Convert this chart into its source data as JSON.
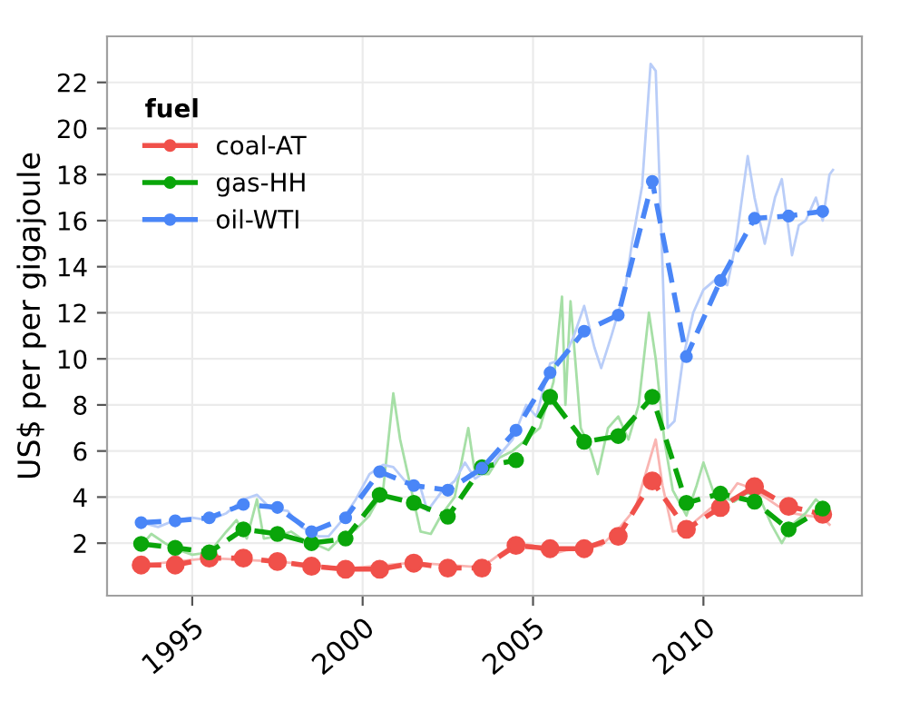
{
  "chart_data": {
    "type": "line",
    "ylabel": "US$ per per gigajoule",
    "legend_title": "fuel",
    "legend": "top left",
    "grid": true,
    "xlim": [
      1992.5,
      2014.65
    ],
    "ylim": [
      -0.28,
      24
    ],
    "xticks": [
      1995,
      2000,
      2005,
      2010
    ],
    "yticks": [
      2,
      4,
      6,
      8,
      10,
      12,
      14,
      16,
      18,
      20,
      22
    ],
    "series": [
      {
        "color": "#f9b5b2",
        "line_style": "solid",
        "marker": "none",
        "x": [
          1993.5,
          1995.5,
          1997.5,
          1999.5,
          2001.5,
          2003.5,
          2004.0,
          2004.5,
          2005.0,
          2005.5,
          2006.0,
          2006.5,
          2007.0,
          2007.5,
          2008.0,
          2008.4,
          2008.6,
          2008.8,
          2009.1,
          2009.5,
          2009.8,
          2010.2,
          2010.6,
          2011.0,
          2011.4,
          2011.8,
          2012.2,
          2012.6,
          2013.0,
          2013.5,
          2013.7
        ],
        "values": [
          1.05,
          1.35,
          1.2,
          0.9,
          1.15,
          0.95,
          1.5,
          2.0,
          1.9,
          1.5,
          1.7,
          1.8,
          1.9,
          2.6,
          3.5,
          5.5,
          6.5,
          4.5,
          2.5,
          2.6,
          3.0,
          3.5,
          3.8,
          4.6,
          4.4,
          4.0,
          3.6,
          3.3,
          3.2,
          3.1,
          2.8
        ]
      },
      {
        "color": "#a6dfa6",
        "line_style": "solid",
        "marker": "none",
        "x": [
          1993.5,
          1993.8,
          1994.2,
          1994.6,
          1995.0,
          1995.5,
          1996.0,
          1996.3,
          1996.6,
          1996.9,
          1997.1,
          1997.5,
          1997.9,
          1998.3,
          1998.7,
          1999.0,
          1999.4,
          1999.8,
          2000.2,
          2000.6,
          2000.9,
          2001.1,
          2001.4,
          2001.7,
          2002.0,
          2002.3,
          2002.7,
          2003.1,
          2003.3,
          2003.7,
          2004.0,
          2004.4,
          2004.8,
          2005.2,
          2005.6,
          2005.85,
          2005.95,
          2006.1,
          2006.4,
          2006.7,
          2006.9,
          2007.2,
          2007.5,
          2007.8,
          2008.1,
          2008.4,
          2008.6,
          2008.85,
          2009.1,
          2009.5,
          2009.8,
          2010.0,
          2010.3,
          2010.6,
          2010.9,
          2011.3,
          2011.7,
          2012.0,
          2012.3,
          2012.6,
          2013.0,
          2013.3,
          2013.6
        ],
        "values": [
          1.9,
          2.4,
          2.0,
          1.7,
          1.5,
          1.6,
          2.5,
          3.0,
          2.2,
          3.9,
          2.2,
          2.3,
          2.5,
          2.1,
          1.9,
          1.7,
          2.3,
          2.6,
          3.2,
          4.3,
          8.5,
          6.5,
          4.5,
          2.5,
          2.4,
          3.2,
          4.0,
          7.0,
          5.0,
          5.0,
          5.7,
          6.0,
          6.5,
          7.0,
          9.0,
          12.7,
          8.0,
          12.5,
          7.0,
          6.0,
          5.0,
          7.0,
          7.5,
          6.5,
          8.0,
          12.0,
          10.0,
          6.5,
          4.3,
          3.2,
          4.5,
          5.5,
          4.2,
          4.0,
          3.8,
          4.2,
          3.8,
          2.8,
          2.0,
          2.8,
          3.3,
          3.9,
          3.5
        ]
      },
      {
        "color": "#b9cdf8",
        "line_style": "solid",
        "marker": "none",
        "x": [
          1993.5,
          1994.0,
          1994.5,
          1995.0,
          1995.5,
          1996.0,
          1996.5,
          1996.9,
          1997.3,
          1997.8,
          1998.2,
          1998.7,
          1999.0,
          1999.4,
          1999.8,
          2000.2,
          2000.6,
          2000.9,
          2001.3,
          2001.7,
          2001.9,
          2002.3,
          2002.7,
          2003.0,
          2003.3,
          2003.7,
          2004.0,
          2004.4,
          2004.8,
          2005.1,
          2005.5,
          2005.9,
          2006.2,
          2006.5,
          2006.8,
          2007.0,
          2007.3,
          2007.7,
          2007.9,
          2008.2,
          2008.45,
          2008.6,
          2008.8,
          2008.95,
          2009.15,
          2009.4,
          2009.7,
          2010.0,
          2010.4,
          2010.7,
          2010.95,
          2011.3,
          2011.5,
          2011.8,
          2012.1,
          2012.3,
          2012.6,
          2012.8,
          2013.0,
          2013.3,
          2013.5,
          2013.7,
          2013.8
        ],
        "values": [
          2.9,
          2.7,
          3.0,
          3.1,
          3.0,
          3.3,
          3.9,
          4.1,
          3.5,
          3.4,
          2.7,
          2.3,
          2.3,
          3.0,
          3.9,
          5.0,
          5.4,
          5.3,
          4.6,
          4.4,
          3.4,
          4.2,
          4.7,
          5.5,
          4.8,
          5.2,
          5.8,
          6.5,
          8.0,
          7.5,
          9.8,
          10.0,
          11.0,
          12.3,
          10.5,
          9.6,
          11.0,
          13.0,
          15.0,
          17.5,
          22.8,
          22.5,
          14.0,
          7.0,
          7.3,
          10.0,
          12.0,
          13.0,
          13.5,
          13.2,
          15.0,
          18.8,
          17.0,
          15.0,
          17.0,
          17.8,
          14.5,
          15.8,
          16.0,
          17.0,
          16.0,
          18.0,
          18.2
        ]
      },
      {
        "name": "coal-AT",
        "color": "#f0504a",
        "line_style": "dashed",
        "marker": "circle",
        "x": [
          1993.5,
          1994.5,
          1995.5,
          1996.5,
          1997.5,
          1998.5,
          1999.5,
          2000.5,
          2001.5,
          2002.5,
          2003.5,
          2004.5,
          2005.5,
          2006.5,
          2007.5,
          2008.5,
          2009.5,
          2010.5,
          2011.5,
          2012.5,
          2013.5
        ],
        "values": [
          1.05,
          1.05,
          1.35,
          1.35,
          1.2,
          1.0,
          0.87,
          0.87,
          1.13,
          0.92,
          0.92,
          1.9,
          1.76,
          1.76,
          2.3,
          4.7,
          2.6,
          3.55,
          4.45,
          3.6,
          3.25
        ]
      },
      {
        "name": "gas-HH",
        "color": "#0aa50a",
        "line_style": "dashed",
        "marker": "circle",
        "x": [
          1993.5,
          1994.5,
          1995.5,
          1996.5,
          1997.5,
          1998.5,
          1999.5,
          2000.5,
          2001.5,
          2002.5,
          2003.5,
          2004.5,
          2005.5,
          2006.5,
          2007.5,
          2008.5,
          2009.5,
          2010.5,
          2011.5,
          2012.5,
          2013.5
        ],
        "values": [
          1.97,
          1.8,
          1.6,
          2.6,
          2.4,
          2.0,
          2.2,
          4.1,
          3.75,
          3.15,
          5.3,
          5.6,
          8.35,
          6.4,
          6.65,
          8.35,
          3.75,
          4.15,
          3.8,
          2.6,
          3.5
        ]
      },
      {
        "name": "oil-WTI",
        "color": "#4a86f7",
        "line_style": "dashed",
        "marker": "circle",
        "x": [
          1993.5,
          1994.5,
          1995.5,
          1996.5,
          1997.5,
          1998.5,
          1999.5,
          2000.5,
          2001.5,
          2002.5,
          2003.5,
          2004.5,
          2005.5,
          2006.5,
          2007.5,
          2008.5,
          2009.5,
          2010.5,
          2011.5,
          2012.5,
          2013.5
        ],
        "values": [
          2.89,
          2.97,
          3.1,
          3.68,
          3.55,
          2.5,
          3.1,
          5.1,
          4.5,
          4.3,
          5.25,
          6.9,
          9.4,
          11.2,
          11.9,
          17.7,
          10.1,
          13.4,
          16.1,
          16.2,
          16.4
        ]
      }
    ]
  }
}
